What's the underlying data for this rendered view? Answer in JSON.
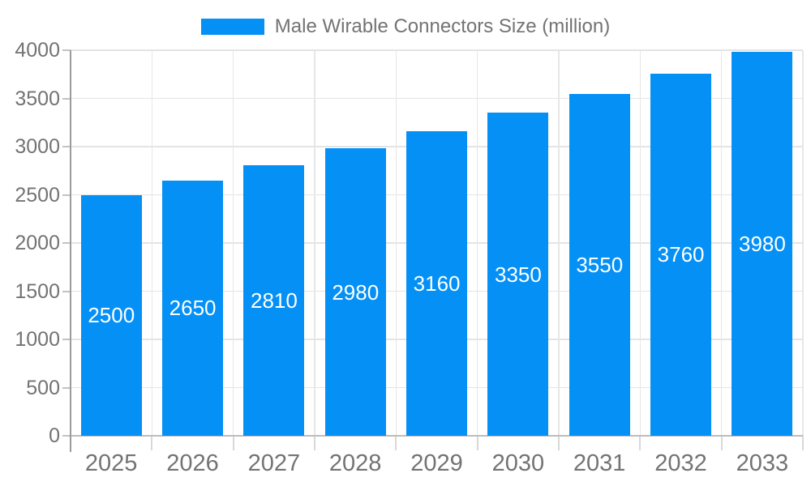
{
  "chart_data": {
    "type": "bar",
    "title": "Male Wirable Connectors Size (million)",
    "legend": {
      "label": "Male Wirable Connectors Size (million)",
      "position": "top"
    },
    "categories": [
      "2025",
      "2026",
      "2027",
      "2028",
      "2029",
      "2030",
      "2031",
      "2032",
      "2033"
    ],
    "series": [
      {
        "name": "Male Wirable Connectors Size (million)",
        "values": [
          2500,
          2650,
          2810,
          2980,
          3160,
          3350,
          3550,
          3760,
          3980
        ]
      }
    ],
    "xlabel": "",
    "ylabel": "",
    "ylim": [
      0,
      4000
    ],
    "yticks": [
      0,
      500,
      1000,
      1500,
      2000,
      2500,
      3000,
      3500,
      4000
    ],
    "grid": true,
    "bar_value_labels": true,
    "colors": {
      "bar": "#0590f6",
      "value_label": "#ffffff",
      "axis_text": "#737373",
      "gridline": "#e4e4e4",
      "y_axis_line": "#9b9b9b",
      "x_axis_line": "#bdbdbd",
      "background": "#ffffff"
    }
  }
}
